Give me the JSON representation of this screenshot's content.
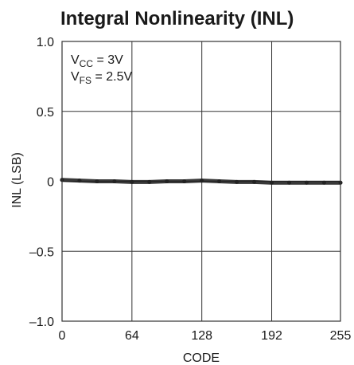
{
  "chart_data": {
    "type": "line",
    "title": "Integral Nonlinearity (INL)",
    "xlabel": "CODE",
    "ylabel": "INL (LSB)",
    "xlim": [
      0,
      255
    ],
    "ylim": [
      -1.0,
      1.0
    ],
    "x_ticks": [
      0,
      64,
      128,
      192,
      255
    ],
    "x_tick_labels": [
      "0",
      "64",
      "128",
      "192",
      "255"
    ],
    "y_ticks": [
      1.0,
      0.5,
      0,
      -0.5,
      -1.0
    ],
    "y_tick_labels": [
      "1.0",
      "0.5",
      "0",
      "–0.5",
      "–1.0"
    ],
    "grid": true,
    "annotations": {
      "line1": {
        "main": "V",
        "sub": "CC",
        "rest": " = 3V"
      },
      "line2": {
        "main": "V",
        "sub": "FS",
        "rest": " = 2.5V"
      }
    },
    "series": [
      {
        "x": [
          0,
          16,
          32,
          48,
          64,
          80,
          96,
          112,
          128,
          144,
          160,
          176,
          192,
          208,
          224,
          240,
          255
        ],
        "values": [
          0.01,
          0.005,
          0.0,
          0.0,
          -0.005,
          -0.005,
          0.0,
          0.0,
          0.005,
          0.0,
          -0.005,
          -0.005,
          -0.01,
          -0.01,
          -0.01,
          -0.01,
          -0.01
        ]
      }
    ],
    "colors": {
      "line": "#222222",
      "grid": "#333333",
      "text": "#1a1a1a"
    }
  }
}
